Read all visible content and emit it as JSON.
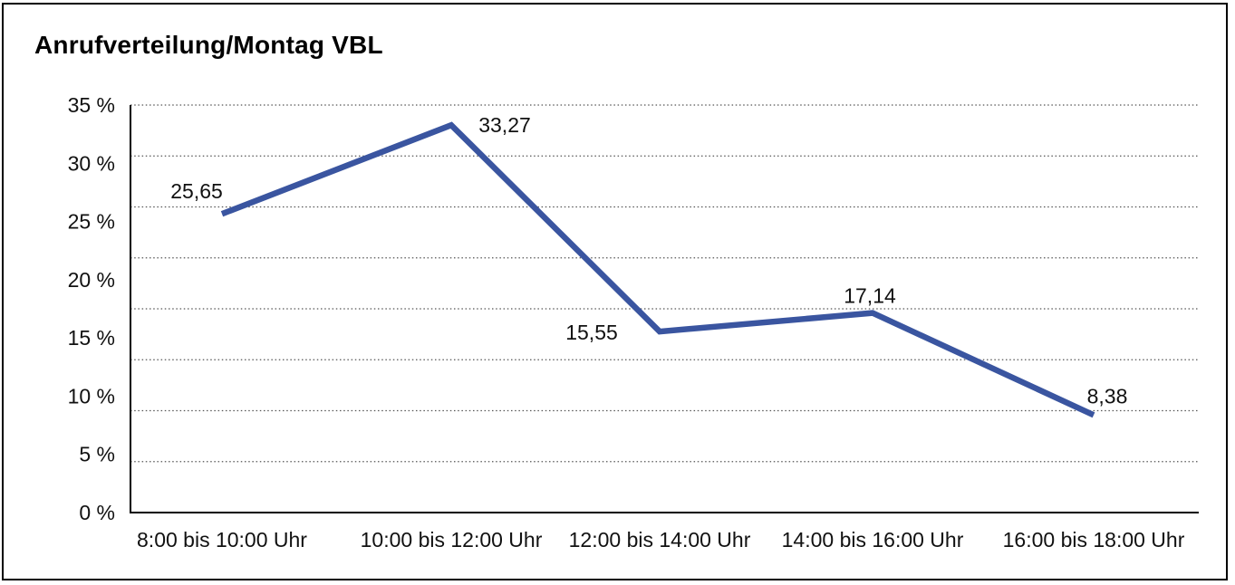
{
  "chart_data": {
    "type": "line",
    "title": "Anrufverteilung/Montag VBL",
    "categories": [
      "8:00 bis 10:00 Uhr",
      "10:00 bis 12:00 Uhr",
      "12:00 bis 14:00 Uhr",
      "14:00 bis 16:00 Uhr",
      "16:00 bis 18:00 Uhr"
    ],
    "values": [
      25.65,
      33.27,
      15.55,
      17.14,
      8.38
    ],
    "value_labels": [
      "25,65",
      "33,27",
      "15,55",
      "17,14",
      "8,38"
    ],
    "y_ticks": [
      "35 %",
      "30 %",
      "25 %",
      "20 %",
      "15 %",
      "10 %",
      "5 %",
      "0 %"
    ],
    "y_tick_values": [
      35,
      30,
      25,
      20,
      15,
      10,
      5,
      0
    ],
    "ylim": [
      0,
      35
    ],
    "xlabel": "",
    "ylabel": "",
    "legend": "none",
    "grid": "horizontal-dotted-8-divisions",
    "line_color": "#3A55A0",
    "grid_color": "#555555",
    "axis_color": "#000000",
    "text_color": "#111111"
  }
}
